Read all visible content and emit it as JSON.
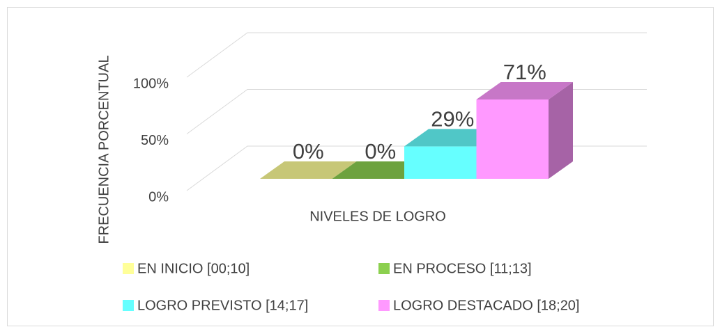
{
  "chart_data": {
    "type": "bar3d",
    "y_label": "FRECUENCIA PORCENTUAL",
    "x_label": "NIVELES DE LOGRO",
    "categories": [
      null
    ],
    "series": [
      {
        "name": "EN INICIO [00;10]",
        "color": "#ffff99",
        "values": [
          0
        ],
        "value_labels": [
          "0%"
        ]
      },
      {
        "name": "EN PROCESO [11;13]",
        "color": "#8cd04f",
        "values": [
          0
        ],
        "value_labels": [
          "0%"
        ]
      },
      {
        "name": "LOGRO PREVISTO [14;17]",
        "color": "#66ffff",
        "values": [
          29
        ],
        "value_labels": [
          "29%"
        ]
      },
      {
        "name": "LOGRO DESTACADO [18;20]",
        "color": "#ff99ff",
        "values": [
          71
        ],
        "value_labels": [
          "71%"
        ]
      }
    ],
    "ylim": [
      0,
      100
    ],
    "yticks": [
      {
        "value": 0,
        "label": "0%"
      },
      {
        "value": 50,
        "label": "50%"
      },
      {
        "value": 100,
        "label": "100%"
      }
    ],
    "grid": true,
    "legend": "bottom"
  }
}
